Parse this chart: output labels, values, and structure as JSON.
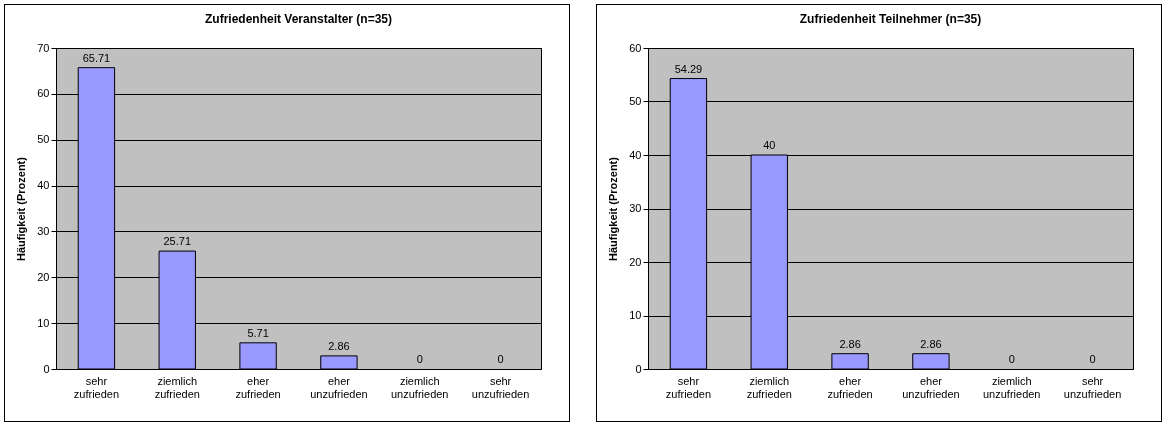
{
  "chart_data": [
    {
      "type": "bar",
      "title": "Zufriedenheit Veranstalter (n=35)",
      "ylabel": "Häufigkeit (Prozent)",
      "categories": [
        "sehr zufrieden",
        "ziemlich zufrieden",
        "eher zufrieden",
        "eher unzufrieden",
        "ziemlich unzufrieden",
        "sehr unzufrieden"
      ],
      "values": [
        65.71,
        25.71,
        5.71,
        2.86,
        0,
        0
      ],
      "color": "#9999ff",
      "ylim": [
        0,
        70
      ],
      "yticks": [
        0,
        10,
        20,
        30,
        40,
        50,
        60,
        70
      ],
      "grid": "y",
      "data_labels": true
    },
    {
      "type": "bar",
      "title": "Zufriedenheit Teilnehmer (n=35)",
      "ylabel": "Häufigkeit (Prozent)",
      "categories": [
        "sehr zufrieden",
        "ziemlich zufrieden",
        "eher zufrieden",
        "eher unzufrieden",
        "ziemlich unzufrieden",
        "sehr unzufrieden"
      ],
      "values": [
        54.29,
        40,
        2.86,
        2.86,
        0,
        0
      ],
      "color": "#9999ff",
      "ylim": [
        0,
        60
      ],
      "yticks": [
        0,
        10,
        20,
        30,
        40,
        50,
        60
      ],
      "grid": "y",
      "data_labels": true
    }
  ]
}
